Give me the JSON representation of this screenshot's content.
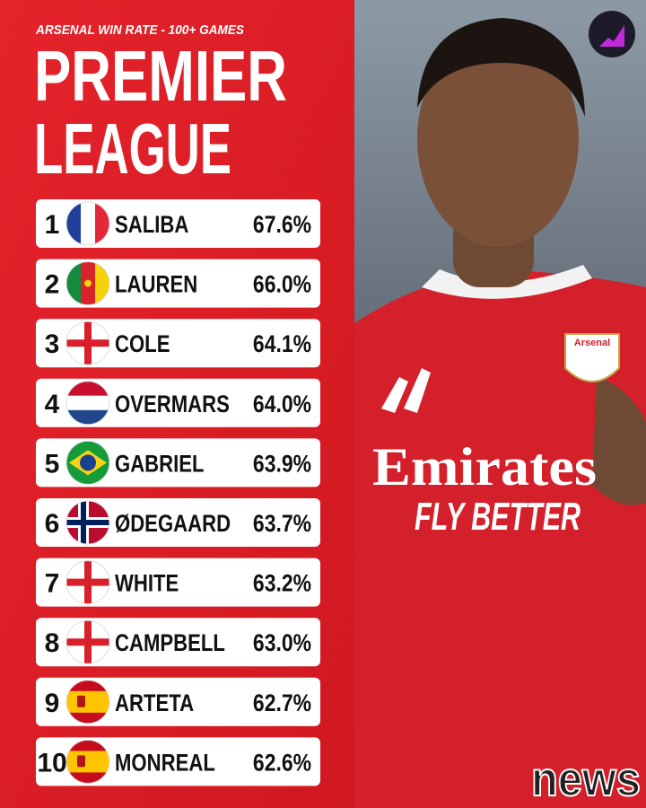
{
  "header": {
    "subtitle": "ARSENAL WIN RATE - 100+ GAMES",
    "title_lines": [
      "PREMIER",
      "LEAGUE"
    ]
  },
  "rows": [
    {
      "rank": "1",
      "player": "SALIBA",
      "win_rate": "67.6%"
    },
    {
      "rank": "2",
      "player": "LAUREN",
      "win_rate": "66.0%"
    },
    {
      "rank": "3",
      "player": "COLE",
      "win_rate": "64.1%"
    },
    {
      "rank": "4",
      "player": "OVERMARS",
      "win_rate": "64.0%"
    },
    {
      "rank": "5",
      "player": "GABRIEL",
      "win_rate": "63.9%"
    },
    {
      "rank": "6",
      "player": "ØDEGAARD",
      "win_rate": "63.7%"
    },
    {
      "rank": "7",
      "player": "WHITE",
      "win_rate": "63.2%"
    },
    {
      "rank": "8",
      "player": "CAMPBELL",
      "win_rate": "63.0%"
    },
    {
      "rank": "9",
      "player": "ARTETA",
      "win_rate": "62.7%"
    },
    {
      "rank": "10",
      "player": "MONREAL",
      "win_rate": "62.6%"
    }
  ],
  "photo": {
    "crest": "Arsenal",
    "sponsor": "Emirates",
    "slogan": "FLY BETTER"
  },
  "watermark": "news"
}
